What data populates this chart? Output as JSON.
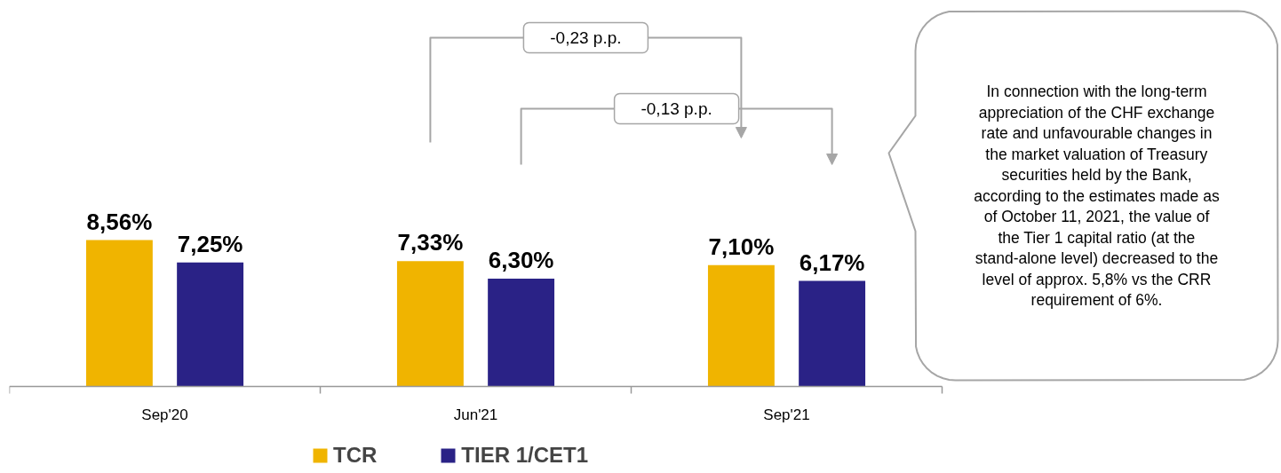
{
  "chart_data": {
    "type": "bar",
    "categories": [
      "Sep'20",
      "Jun'21",
      "Sep'21"
    ],
    "series": [
      {
        "name": "TCR",
        "color": "#f0b400",
        "values": [
          8.56,
          7.33,
          7.1
        ],
        "value_labels": [
          "8,56%",
          "7,33%",
          "7,10%"
        ]
      },
      {
        "name": "TIER 1/CET1",
        "color": "#2a2286",
        "values": [
          7.25,
          6.3,
          6.17
        ],
        "value_labels": [
          "7,25%",
          "6,30%",
          "6,17%"
        ]
      }
    ],
    "annotations": [
      "-0,23 p.p.",
      "-0,13 p.p.",
      "In connection with the long-term appreciation of the CHF exchange rate and unfavourable changes in the market valuation of Treasury securities held by the Bank, according to the estimates made as of October 11, 2021, the value of the Tier 1 capital ratio (at the stand-alone level) decreased to the level of approx. 5,8% vs the CRR requirement of 6%."
    ],
    "legend": "bottom",
    "grid": false
  }
}
